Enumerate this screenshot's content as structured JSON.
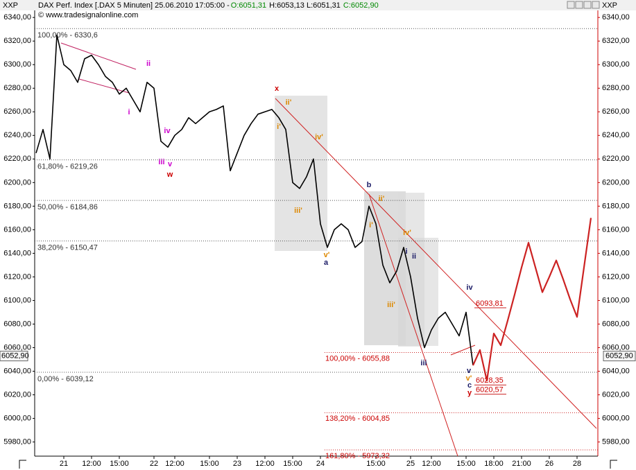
{
  "chart_data": {
    "type": "line",
    "header": {
      "symbol_left": "XXP",
      "symbol_right": "XXP",
      "instrument": "DAX Perf. Index [.DAX  5 Minuten] 25.06.2010 17:05:00 - ",
      "open": "O:6051,31",
      "high_low": "H:6053,13 L:6051,31",
      "close": "C:6052,90"
    },
    "copyright": "© www.tradesignalonline.com",
    "categories": [
      null,
      null,
      null,
      null,
      "21",
      null,
      null,
      null,
      "12:00",
      null,
      null,
      null,
      "15:00",
      null,
      null,
      null,
      null,
      "22",
      null,
      null,
      "12:00",
      null,
      null,
      null,
      null,
      "15:00",
      null,
      null,
      null,
      "23",
      null,
      null,
      null,
      "12:00",
      null,
      null,
      null,
      "15:00",
      null,
      null,
      null,
      "24",
      null,
      null,
      null,
      null,
      null,
      null,
      null,
      "15:00",
      null,
      null,
      null,
      null,
      "25",
      null,
      null,
      "12:00",
      null,
      null,
      null,
      null,
      "15:00",
      null,
      null,
      null,
      "18:00",
      null,
      null,
      null,
      "21:00",
      null,
      null,
      null,
      "26",
      null,
      null,
      null,
      "28",
      null,
      null
    ],
    "series": [
      {
        "name": "DAX",
        "color": "#000000",
        "values": [
          6225,
          6245,
          6220,
          6325,
          6300,
          6295,
          6285,
          6305,
          6308,
          6300,
          6290,
          6285,
          6275,
          6280,
          6270,
          6260,
          6285,
          6280,
          6235,
          6230,
          6240,
          6245,
          6255,
          6250,
          6255,
          6260,
          6262,
          6265,
          6210,
          6225,
          6240,
          6250,
          6258,
          6260,
          6262,
          6255,
          6245,
          6200,
          6195,
          6205,
          6220,
          6165,
          6145,
          6160,
          6165,
          6160,
          6145,
          6150,
          6180,
          6165,
          6130,
          6115,
          6125,
          6145,
          6120,
          6085,
          6060,
          6075,
          6085,
          6090,
          6080,
          6070,
          6090,
          6045,
          null,
          null,
          null,
          null,
          null,
          null,
          null,
          null,
          null,
          null,
          null,
          null,
          null,
          null,
          null,
          null,
          null
        ]
      },
      {
        "name": "Forecast",
        "color": "#cc2222",
        "values": [
          null,
          null,
          null,
          null,
          null,
          null,
          null,
          null,
          null,
          null,
          null,
          null,
          null,
          null,
          null,
          null,
          null,
          null,
          null,
          null,
          null,
          null,
          null,
          null,
          null,
          null,
          null,
          null,
          null,
          null,
          null,
          null,
          null,
          null,
          null,
          null,
          null,
          null,
          null,
          null,
          null,
          null,
          null,
          null,
          null,
          null,
          null,
          null,
          null,
          null,
          null,
          null,
          null,
          null,
          null,
          null,
          null,
          null,
          null,
          null,
          null,
          null,
          null,
          6045,
          6058,
          6032,
          6072,
          6062,
          6083,
          6105,
          6128,
          6149,
          6128,
          6107,
          6120,
          6134,
          6118,
          6101,
          6086,
          6128,
          6170
        ]
      }
    ],
    "ylim": [
      5968,
      6346
    ],
    "yticks": [
      {
        "value": 5980,
        "label": "5980,00"
      },
      {
        "value": 6000,
        "label": "6000,00"
      },
      {
        "value": 6020,
        "label": "6020,00"
      },
      {
        "value": 6040,
        "label": "6040,00"
      },
      {
        "value": 6060,
        "label": "6060,00"
      },
      {
        "value": 6080,
        "label": "6080,00"
      },
      {
        "value": 6100,
        "label": "6100,00"
      },
      {
        "value": 6120,
        "label": "6120,00"
      },
      {
        "value": 6140,
        "label": "6140,00"
      },
      {
        "value": 6160,
        "label": "6160,00"
      },
      {
        "value": 6180,
        "label": "6180,00"
      },
      {
        "value": 6200,
        "label": "6200,00"
      },
      {
        "value": 6220,
        "label": "6220,00"
      },
      {
        "value": 6240,
        "label": "6240,00"
      },
      {
        "value": 6260,
        "label": "6260,00"
      },
      {
        "value": 6280,
        "label": "6280,00"
      },
      {
        "value": 6300,
        "label": "6300,00"
      },
      {
        "value": 6320,
        "label": "6320,00"
      },
      {
        "value": 6340,
        "label": "6340,00"
      }
    ],
    "last_price": {
      "value": 6052.9,
      "label": "6052,90"
    },
    "fib_levels": [
      {
        "value": 6330.6,
        "label": "100,00% - 6330,6"
      },
      {
        "value": 6219.26,
        "label": "61,80% - 6219,26"
      },
      {
        "value": 6184.86,
        "label": "50,00% - 6184,86"
      },
      {
        "value": 6150.47,
        "label": "38,20% - 6150,47"
      },
      {
        "value": 6039.12,
        "label": "0,00% - 6039,12"
      }
    ],
    "fib_extensions": [
      {
        "value": 6055.88,
        "label": "100,00% - 6055,88"
      },
      {
        "value": 6004.85,
        "label": "138,20% - 6004,85"
      },
      {
        "value": 5973.32,
        "label": "161,80% - 5973,32"
      }
    ],
    "price_marks": [
      {
        "value": 6093.81,
        "label": "6093,81"
      },
      {
        "value": 6028.35,
        "label": "6028,35"
      },
      {
        "value": 6020.57,
        "label": "6020,57"
      }
    ],
    "wave_labels": [
      "ii",
      "i",
      "iv",
      "iii",
      "v",
      "w",
      "x",
      "ii'",
      "i'",
      "iv'",
      "iii'",
      "v'",
      "a",
      "b",
      "ii'",
      "i'",
      "iv'",
      "iii'",
      "i",
      "ii",
      "iii",
      "iv",
      "v",
      "v'",
      "c",
      "y"
    ]
  }
}
